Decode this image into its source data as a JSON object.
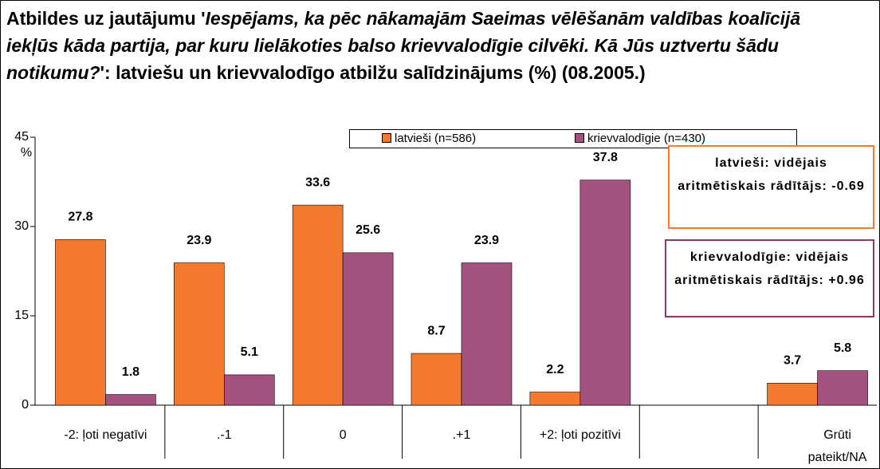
{
  "chart_data": {
    "type": "bar",
    "title_parts": [
      {
        "text": "Atbildes uz jautājumu '",
        "italic": false
      },
      {
        "text": "Iespējams, ka pēc nākamajām Saeimas vēlēšanām valdības koalīcijā iekļūs kāda partija, par kuru lielākoties balso krievvalodīgie cilvēki. Kā Jūs uztvertu šādu notikumu?",
        "italic": true
      },
      {
        "text": "': latviešu un krievvalodīgo atbilžu salīdzinājums (%) (08.2005.)",
        "italic": false
      }
    ],
    "y_label": "%",
    "categories": [
      "-2: ļoti negatīvi",
      ".-1",
      "0",
      ".+1",
      "+2: ļoti pozitīvi",
      null,
      "Grūti pateikt/NA"
    ],
    "series": [
      {
        "name": "latvieši (n=586)",
        "color": "#f47a30",
        "values": [
          27.8,
          23.9,
          33.6,
          8.7,
          2.2,
          null,
          3.7
        ]
      },
      {
        "name": "krievvalodīgie (n=430)",
        "color": "#a4527e",
        "values": [
          1.8,
          5.1,
          25.6,
          23.9,
          37.8,
          null,
          5.8
        ]
      }
    ],
    "ylim": [
      0,
      45
    ],
    "yticks": [
      0,
      15,
      30,
      45
    ],
    "annotations": [
      {
        "text": "latvieši: vidējais aritmētiskais rādītājs: -0.69",
        "color": "#f47a30"
      },
      {
        "text": "krievvalodīgie: vidējais aritmētiskais rādītājs: +0.96",
        "color": "#8a3a66"
      }
    ]
  }
}
